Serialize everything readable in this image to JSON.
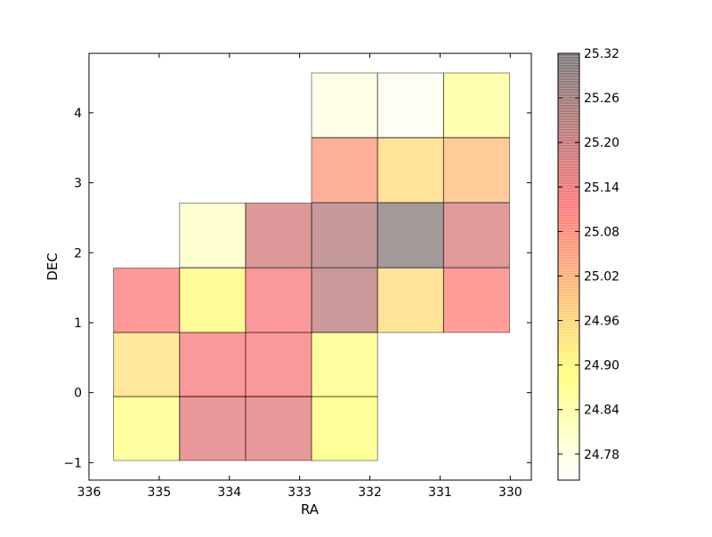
{
  "chart_data": {
    "type": "heatmap",
    "title": "",
    "xlabel": "RA",
    "ylabel": "DEC",
    "xlim": [
      336,
      329.7
    ],
    "ylim": [
      -1.25,
      4.85
    ],
    "x_inverted": true,
    "xticks": [
      336,
      335,
      334,
      333,
      332,
      331,
      330
    ],
    "yticks": [
      -1,
      0,
      1,
      2,
      3,
      4
    ],
    "cell_width_ra": 0.94,
    "cell_height_dec": 0.92,
    "cells": [
      {
        "ra": 335.18,
        "dec": -0.51,
        "value": 24.88
      },
      {
        "ra": 335.18,
        "dec": 0.4,
        "value": 24.94
      },
      {
        "ra": 335.18,
        "dec": 1.32,
        "value": 25.11
      },
      {
        "ra": 334.24,
        "dec": -0.51,
        "value": 25.16
      },
      {
        "ra": 334.24,
        "dec": 0.4,
        "value": 25.12
      },
      {
        "ra": 334.24,
        "dec": 1.32,
        "value": 24.9
      },
      {
        "ra": 334.24,
        "dec": 2.25,
        "value": 24.81
      },
      {
        "ra": 333.3,
        "dec": -0.51,
        "value": 25.16
      },
      {
        "ra": 333.3,
        "dec": 0.4,
        "value": 25.12
      },
      {
        "ra": 333.3,
        "dec": 1.32,
        "value": 25.12
      },
      {
        "ra": 333.3,
        "dec": 2.25,
        "value": 25.18
      },
      {
        "ra": 332.36,
        "dec": -0.51,
        "value": 24.89
      },
      {
        "ra": 332.36,
        "dec": 0.4,
        "value": 24.88
      },
      {
        "ra": 332.36,
        "dec": 1.32,
        "value": 25.22
      },
      {
        "ra": 332.36,
        "dec": 2.25,
        "value": 25.23
      },
      {
        "ra": 332.36,
        "dec": 3.18,
        "value": 25.06
      },
      {
        "ra": 332.36,
        "dec": 4.11,
        "value": 24.78
      },
      {
        "ra": 331.42,
        "dec": 1.32,
        "value": 24.95
      },
      {
        "ra": 331.42,
        "dec": 2.25,
        "value": 25.3
      },
      {
        "ra": 331.42,
        "dec": 3.18,
        "value": 24.95
      },
      {
        "ra": 331.42,
        "dec": 4.11,
        "value": 24.76
      },
      {
        "ra": 330.48,
        "dec": 1.32,
        "value": 25.1
      },
      {
        "ra": 330.48,
        "dec": 2.25,
        "value": 25.17
      },
      {
        "ra": 330.48,
        "dec": 3.18,
        "value": 25.0
      },
      {
        "ra": 330.48,
        "dec": 4.11,
        "value": 24.86
      }
    ],
    "colorbar": {
      "min": 24.745,
      "max": 25.32,
      "ticks": [
        "24.78",
        "24.84",
        "24.90",
        "24.96",
        "25.02",
        "25.08",
        "25.14",
        "25.20",
        "25.26",
        "25.32"
      ],
      "colormap": "hot_r",
      "alpha": 0.4
    },
    "grid": false,
    "legend": "none"
  }
}
